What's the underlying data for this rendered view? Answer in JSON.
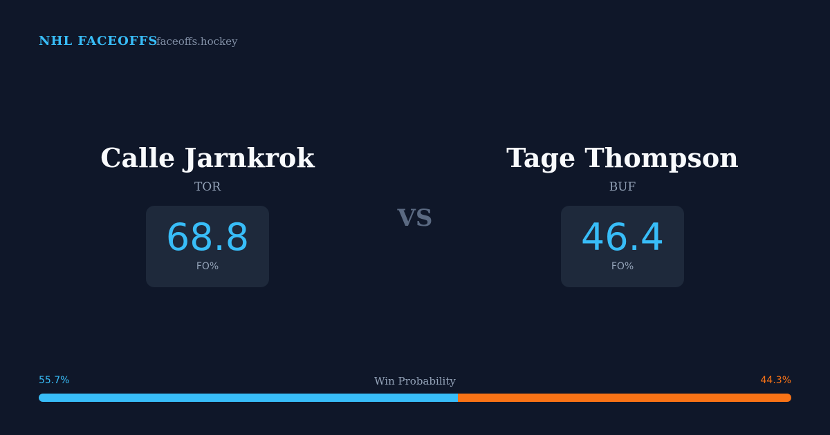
{
  "header": {
    "brand": "NHL FACEOFFS",
    "site": "faceoffs.hockey"
  },
  "players": [
    {
      "name": "Calle Jarnkrok",
      "team": "TOR",
      "fo_pct": 68.8,
      "fo_label": "FO%"
    },
    {
      "name": "Tage Thompson",
      "team": "BUF",
      "fo_pct": 46.4,
      "fo_label": "FO%"
    }
  ],
  "versus": "VS",
  "win_probability": {
    "title": "Win Probability",
    "sides": [
      {
        "value": 55.7,
        "label": "55.7%",
        "color": "#38bdf8"
      },
      {
        "value": 44.3,
        "label": "44.3%",
        "color": "#f97316"
      }
    ]
  }
}
